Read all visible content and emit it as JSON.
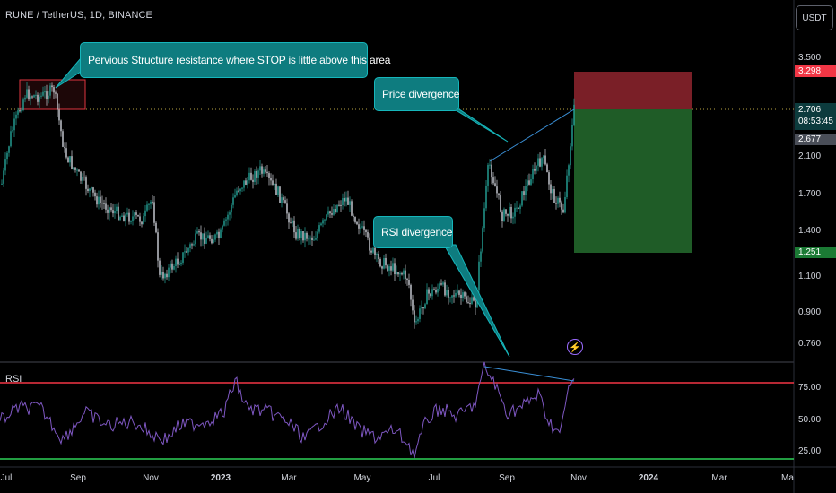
{
  "header": {
    "symbol": "RUNE / TetherUS, 1D, BINANCE"
  },
  "currency_button": "USDT",
  "price_axis": {
    "ticks": [
      "3.500",
      "2.100",
      "1.700",
      "1.400",
      "1.100",
      "0.900",
      "0.760"
    ],
    "badges": {
      "stop": {
        "label": "3.298",
        "color": "#f23645"
      },
      "entry": {
        "label": "2.706",
        "color": "#0c3b3d"
      },
      "countdown": {
        "label": "08:53:45"
      },
      "last": {
        "label": "2.677",
        "color": "#4a4e58"
      },
      "target": {
        "label": "1.251",
        "color": "#1b7a34"
      }
    }
  },
  "rsi": {
    "label": "RSI",
    "ticks": [
      "75.00",
      "50.00",
      "25.00"
    ],
    "upper_color": "#f23645",
    "lower_color": "#2ed158",
    "line_color": "#7e57c2"
  },
  "time_axis": [
    {
      "label": "Jul",
      "year": false
    },
    {
      "label": "Sep",
      "year": false
    },
    {
      "label": "Nov",
      "year": false
    },
    {
      "label": "2023",
      "year": true
    },
    {
      "label": "Mar",
      "year": false
    },
    {
      "label": "May",
      "year": false
    },
    {
      "label": "Jul",
      "year": false
    },
    {
      "label": "Sep",
      "year": false
    },
    {
      "label": "Nov",
      "year": false
    },
    {
      "label": "2024",
      "year": true
    },
    {
      "label": "Mar",
      "year": false
    },
    {
      "label": "Ma",
      "year": false
    }
  ],
  "annotations": {
    "structure": "Pervious Structure resistance where STOP is little above this area",
    "price_div": "Price divergence",
    "rsi_div": "RSI divergence"
  },
  "colors": {
    "up": "#26a69a",
    "down": "#d1d4dc",
    "stop_zone": "#7a1f27",
    "target_zone": "#1f5c27",
    "callout": "#0e7c7f",
    "divergence_line": "#3a8fd6"
  },
  "icons": {
    "alert": "lightning-icon"
  }
}
